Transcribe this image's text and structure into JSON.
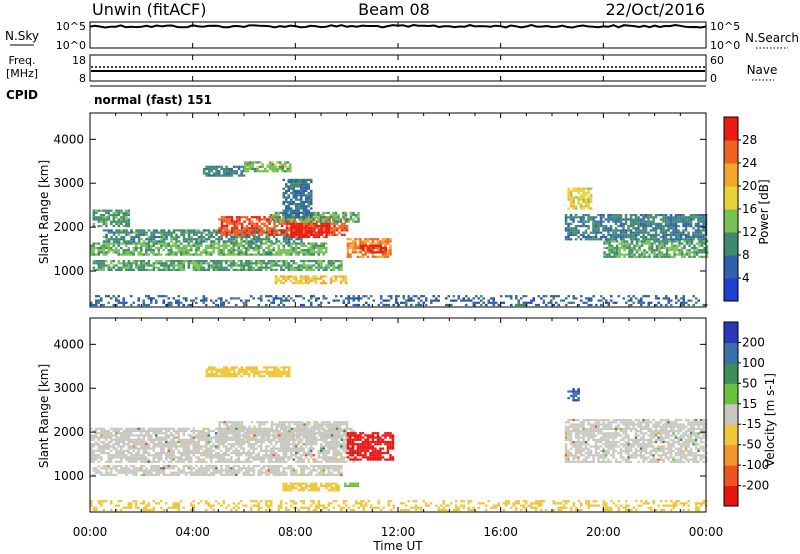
{
  "header": {
    "station": "Unwin (fitACF)",
    "beam": "Beam 08",
    "date": "22/Oct/2016"
  },
  "panels": {
    "nsky": {
      "label": "N.Sky",
      "ticks_left": [
        "10^5",
        "10^0"
      ],
      "ticks_right": [
        "10^5",
        "10^0"
      ],
      "right_label": "N.Search"
    },
    "freq": {
      "label": "Freq.",
      "unit": "[MHz]",
      "ticks_left": [
        "18",
        "8"
      ],
      "ticks_right": [
        "60",
        "0"
      ],
      "right_label": "Nave"
    },
    "cpid": {
      "label": "CPID",
      "value": "normal (fast) 151"
    }
  },
  "chart_data": [
    {
      "type": "heatmap",
      "name": "power",
      "ylabel": "Slant Range [km]",
      "yticks": [
        1000,
        2000,
        3000,
        4000
      ],
      "ylim": [
        180,
        4600
      ],
      "colorbar": {
        "label": "Power [dB]",
        "ticks": [
          4,
          8,
          12,
          16,
          20,
          24,
          28
        ],
        "range": [
          0,
          32
        ],
        "colors": [
          "#1f3fcf",
          "#2f62a8",
          "#3d8a6c",
          "#78c155",
          "#e8d43a",
          "#f4a52b",
          "#ef6322",
          "#e81c12"
        ]
      },
      "regions": [
        {
          "t0": 0.0,
          "t1": 9.2,
          "r0": 1350,
          "r1": 1650,
          "v": 13
        },
        {
          "t0": 0.5,
          "t1": 8.2,
          "r0": 1650,
          "r1": 1950,
          "v": 10
        },
        {
          "t0": 5.0,
          "t1": 10.0,
          "r0": 1800,
          "r1": 2250,
          "v": 27
        },
        {
          "t0": 7.8,
          "t1": 9.3,
          "r0": 1750,
          "r1": 2100,
          "v": 30
        },
        {
          "t0": 10.0,
          "t1": 11.7,
          "r0": 1300,
          "r1": 1750,
          "v": 24
        },
        {
          "t0": 10.5,
          "t1": 11.5,
          "r0": 1400,
          "r1": 1600,
          "v": 30
        },
        {
          "t0": 7.0,
          "t1": 10.5,
          "r0": 2100,
          "r1": 2350,
          "v": 12
        },
        {
          "t0": 0.1,
          "t1": 1.5,
          "r0": 2000,
          "r1": 2400,
          "v": 11
        },
        {
          "t0": 0.1,
          "t1": 9.8,
          "r0": 1000,
          "r1": 1250,
          "v": 11
        },
        {
          "t0": 7.2,
          "t1": 10.0,
          "r0": 700,
          "r1": 900,
          "v": 20
        },
        {
          "t0": 4.4,
          "t1": 6.0,
          "r0": 3150,
          "r1": 3400,
          "v": 9
        },
        {
          "t0": 6.0,
          "t1": 7.8,
          "r0": 3250,
          "r1": 3500,
          "v": 14
        },
        {
          "t0": 7.5,
          "t1": 8.6,
          "r0": 2200,
          "r1": 3100,
          "v": 7
        },
        {
          "t0": 18.5,
          "t1": 24.0,
          "r0": 1700,
          "r1": 2300,
          "v": 9
        },
        {
          "t0": 20.0,
          "t1": 24.0,
          "r0": 1300,
          "r1": 1700,
          "v": 12
        },
        {
          "t0": 18.6,
          "t1": 19.5,
          "r0": 2400,
          "r1": 2900,
          "v": 18
        },
        {
          "t0": 0.0,
          "t1": 24.0,
          "r0": 200,
          "r1": 450,
          "v": 6
        }
      ]
    },
    {
      "type": "heatmap",
      "name": "velocity",
      "ylabel": "Slant Range [km]",
      "yticks": [
        1000,
        2000,
        3000,
        4000
      ],
      "ylim": [
        180,
        4600
      ],
      "colorbar": {
        "label": "Velocity [m s-1]",
        "ticks": [
          200,
          100,
          50,
          15,
          -15,
          -50,
          -100,
          -200
        ],
        "colors": [
          "#2738b8",
          "#3a6fa8",
          "#3a8f5a",
          "#6cc040",
          "#c8c8c0",
          "#f0c63a",
          "#f0962a",
          "#ef5420",
          "#e81410"
        ]
      },
      "regions": [
        {
          "t0": 0.0,
          "t1": 10.3,
          "r0": 1300,
          "r1": 2100,
          "v": 0
        },
        {
          "t0": 5.0,
          "t1": 10.0,
          "r0": 1800,
          "r1": 2250,
          "v": 0
        },
        {
          "t0": 0.1,
          "t1": 9.8,
          "r0": 1000,
          "r1": 1250,
          "v": 0
        },
        {
          "t0": 10.0,
          "t1": 11.8,
          "r0": 1350,
          "r1": 2000,
          "v": -220
        },
        {
          "t0": 7.5,
          "t1": 9.7,
          "r0": 650,
          "r1": 850,
          "v": -40
        },
        {
          "t0": 9.9,
          "t1": 10.4,
          "r0": 750,
          "r1": 850,
          "v": 40
        },
        {
          "t0": 4.5,
          "t1": 7.8,
          "r0": 3250,
          "r1": 3500,
          "v": -25
        },
        {
          "t0": 18.5,
          "t1": 24.0,
          "r0": 1300,
          "r1": 2300,
          "v": 0
        },
        {
          "t0": 18.6,
          "t1": 19.0,
          "r0": 2700,
          "r1": 3000,
          "v": 200
        },
        {
          "t0": 0.0,
          "t1": 24.0,
          "r0": 200,
          "r1": 450,
          "v": -30
        }
      ]
    }
  ],
  "time_axis": {
    "xlabel": "Time UT",
    "ticks": [
      "00:00",
      "04:00",
      "08:00",
      "12:00",
      "16:00",
      "20:00",
      "00:00"
    ],
    "xlim": [
      0,
      24
    ]
  }
}
